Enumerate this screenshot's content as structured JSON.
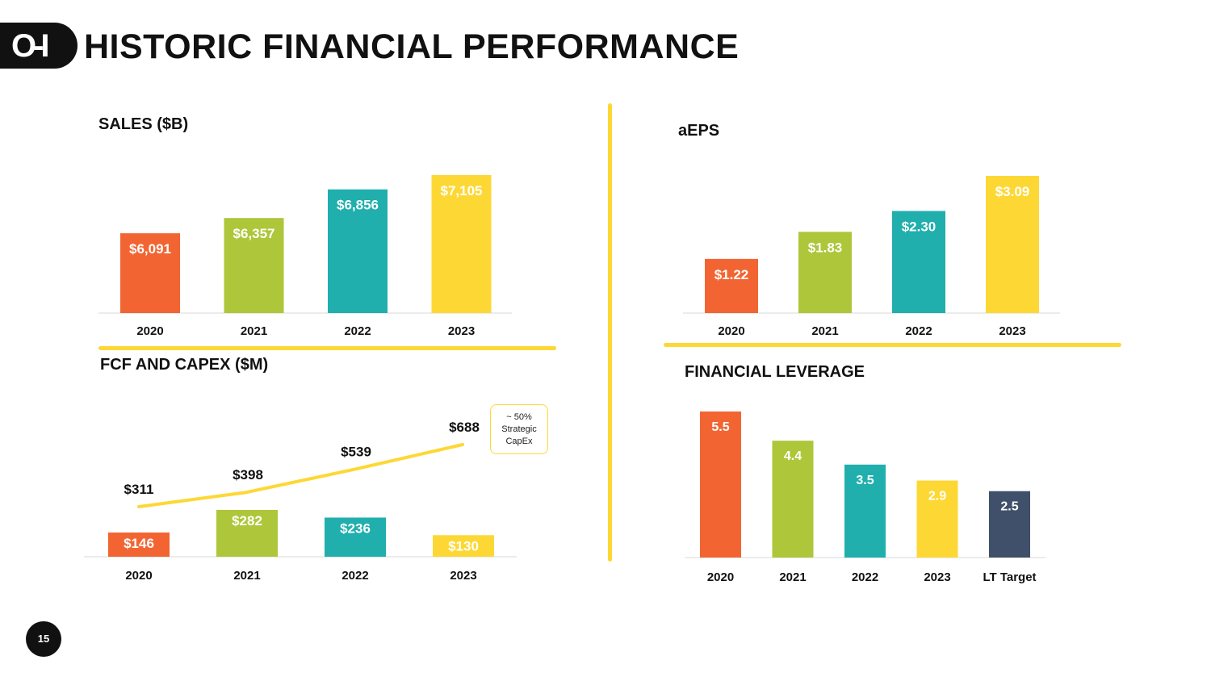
{
  "header": {
    "title": "HISTORIC FINANCIAL PERFORMANCE",
    "logo_text": "O-I"
  },
  "page_number": "15",
  "colors": {
    "orange": "#F26532",
    "green": "#AEC63A",
    "teal": "#20AFAD",
    "yellow": "#FDD835",
    "navy": "#40506A",
    "divider": "#FDD835"
  },
  "chart_data": [
    {
      "id": "sales",
      "type": "bar",
      "title": "SALES ($B)",
      "categories": [
        "2020",
        "2021",
        "2022",
        "2023"
      ],
      "values": [
        6091,
        6357,
        6856,
        7105
      ],
      "labels": [
        "$6,091",
        "$6,357",
        "$6,856",
        "$7,105"
      ],
      "ylim": [
        0,
        7300
      ],
      "xlabel": "",
      "ylabel": ""
    },
    {
      "id": "aeps",
      "type": "bar",
      "title": "aEPS",
      "categories": [
        "2020",
        "2021",
        "2022",
        "2023"
      ],
      "values": [
        1.22,
        1.83,
        2.3,
        3.09
      ],
      "labels": [
        "$1.22",
        "$1.83",
        "$2.30",
        "$3.09"
      ],
      "ylim": [
        0,
        3.09
      ],
      "xlabel": "",
      "ylabel": ""
    },
    {
      "id": "fcf_capex",
      "type": "bar",
      "title": "FCF AND CAPEX ($M)",
      "categories": [
        "2020",
        "2021",
        "2022",
        "2023"
      ],
      "series": [
        {
          "name": "FCF",
          "kind": "bar",
          "values": [
            146,
            282,
            236,
            130
          ],
          "labels": [
            "$146",
            "$282",
            "$236",
            "$130"
          ]
        },
        {
          "name": "CapEx",
          "kind": "line",
          "values": [
            311,
            398,
            539,
            688
          ],
          "labels": [
            "$311",
            "$398",
            "$539",
            "$688"
          ]
        }
      ],
      "annotation": "~ 50% Strategic CapEx",
      "xlabel": "",
      "ylabel": ""
    },
    {
      "id": "leverage",
      "type": "bar",
      "title": "FINANCIAL LEVERAGE",
      "categories": [
        "2020",
        "2021",
        "2022",
        "2023",
        "LT Target"
      ],
      "values": [
        5.5,
        4.4,
        3.5,
        2.9,
        2.5
      ],
      "labels": [
        "5.5",
        "4.4",
        "3.5",
        "2.9",
        "2.5"
      ],
      "ylim": [
        0,
        5.5
      ],
      "xlabel": "",
      "ylabel": ""
    }
  ]
}
